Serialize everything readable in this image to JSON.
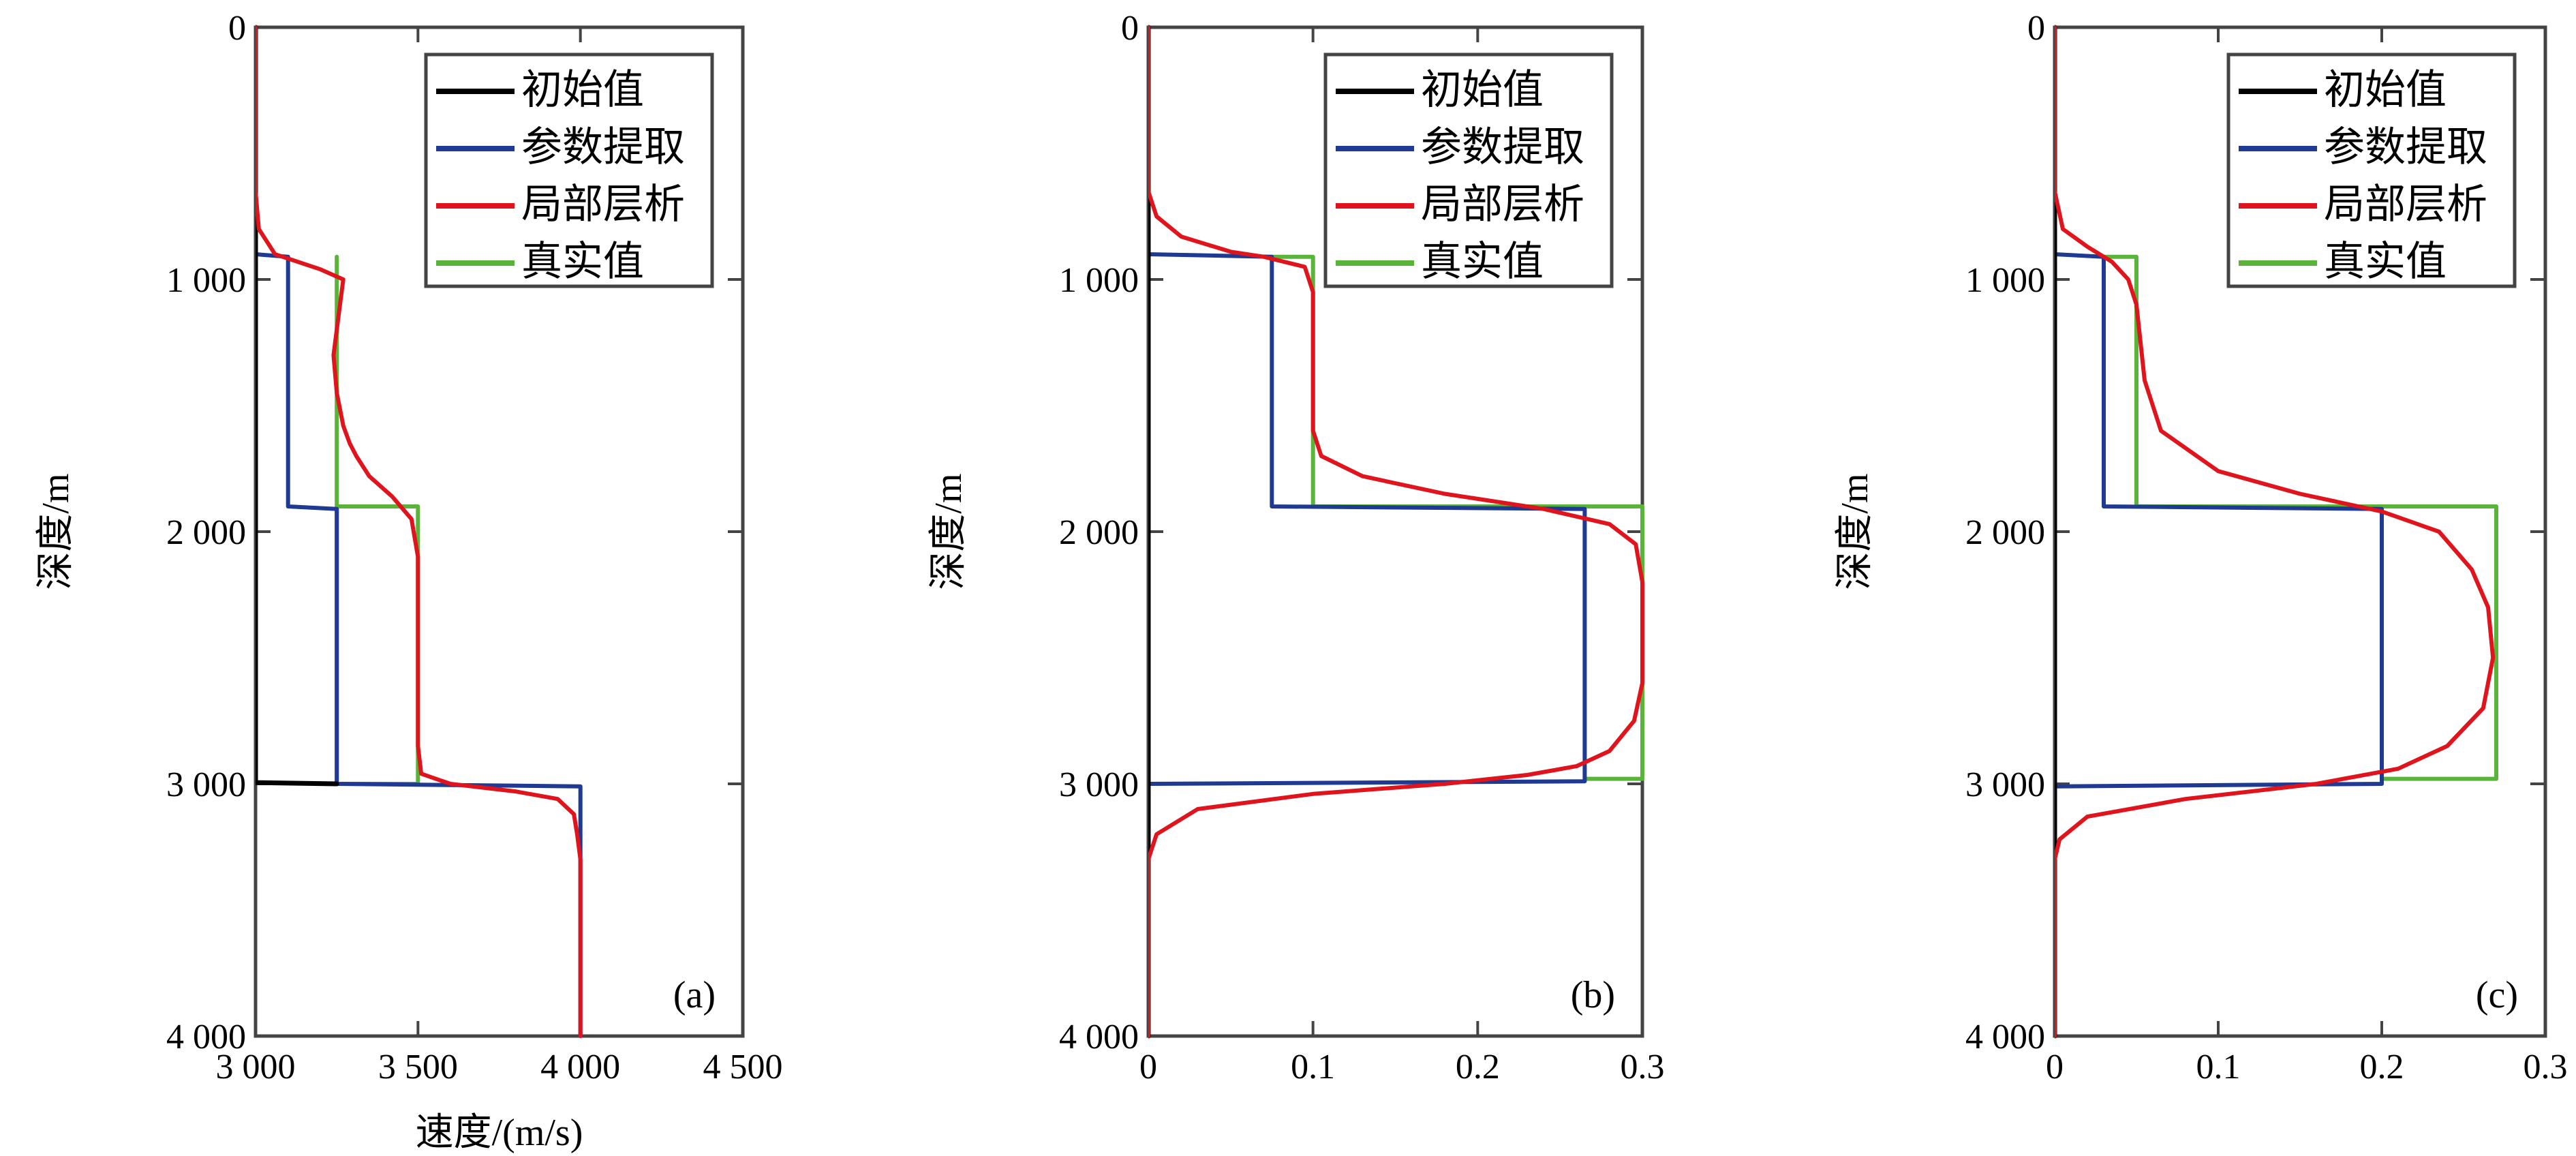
{
  "legend_labels": [
    "初始值",
    "参数提取",
    "局部层析",
    "真实值"
  ],
  "colors": {
    "initial": "#000000",
    "extracted": "#1f3a93",
    "tomography": "#e0141c",
    "true": "#5ab43a",
    "axes": "#444444"
  },
  "chart_data": [
    {
      "type": "line",
      "panel_label": "(a)",
      "xlabel": "速度/(m/s)",
      "ylabel": "深度/m",
      "xlim": [
        3000,
        4500
      ],
      "ylim": [
        0,
        4000
      ],
      "y_inverted": true,
      "xticks": [
        3000,
        3500,
        4000,
        4500
      ],
      "xtick_labels": [
        "3 000",
        "3 500",
        "4 000",
        "4 500"
      ],
      "yticks": [
        0,
        1000,
        2000,
        3000,
        4000
      ],
      "ytick_labels": [
        "0",
        "1 000",
        "2 000",
        "3 000",
        "4 000"
      ],
      "legend_position": "top-right",
      "grid": false,
      "series": [
        {
          "name": "初始值",
          "x": [
            3000,
            3000,
            3250,
            3250
          ],
          "y": [
            0,
            2995,
            3000,
            3000
          ]
        },
        {
          "name": "参数提取",
          "x": [
            3000,
            3000,
            3100,
            3100,
            3250,
            3250,
            4000,
            4000
          ],
          "y": [
            0,
            900,
            910,
            1900,
            1910,
            3000,
            3010,
            4000
          ]
        },
        {
          "name": "局部层析",
          "x": [
            3000,
            3000,
            3010,
            3060,
            3200,
            3270,
            3260,
            3240,
            3250,
            3270,
            3290,
            3310,
            3350,
            3420,
            3480,
            3500,
            3500,
            3510,
            3600,
            3800,
            3930,
            3980,
            3990,
            4000,
            4000,
            4000
          ],
          "y": [
            0,
            650,
            800,
            900,
            960,
            1000,
            1100,
            1300,
            1450,
            1580,
            1650,
            1700,
            1780,
            1860,
            1950,
            2100,
            2850,
            2960,
            3000,
            3030,
            3060,
            3120,
            3200,
            3300,
            3600,
            4000
          ]
        },
        {
          "name": "真实值",
          "x": [
            3250,
            3250,
            3500,
            3500,
            3250,
            3250
          ],
          "y": [
            910,
            1900,
            1900,
            3000,
            3000,
            910
          ]
        }
      ]
    },
    {
      "type": "line",
      "panel_label": "(b)",
      "xlabel": "",
      "ylabel": "深度/m",
      "xlim": [
        0,
        0.3
      ],
      "ylim": [
        0,
        4000
      ],
      "y_inverted": true,
      "xticks": [
        0,
        0.1,
        0.2,
        0.3
      ],
      "xtick_labels": [
        "0",
        "0.1",
        "0.2",
        "0.3"
      ],
      "yticks": [
        0,
        1000,
        2000,
        3000,
        4000
      ],
      "ytick_labels": [
        "0",
        "1 000",
        "2 000",
        "3 000",
        "4 000"
      ],
      "legend_position": "top-right",
      "grid": false,
      "series": [
        {
          "name": "初始值",
          "x": [
            0,
            0
          ],
          "y": [
            0,
            4000
          ]
        },
        {
          "name": "参数提取",
          "x": [
            0,
            0,
            0.075,
            0.075,
            0.265,
            0.265,
            0,
            0
          ],
          "y": [
            0,
            900,
            910,
            1900,
            1910,
            2990,
            3000,
            4000
          ]
        },
        {
          "name": "局部层析",
          "x": [
            0,
            0,
            0.005,
            0.02,
            0.05,
            0.07,
            0.095,
            0.1,
            0.1,
            0.105,
            0.13,
            0.18,
            0.24,
            0.28,
            0.296,
            0.3,
            0.3,
            0.295,
            0.28,
            0.26,
            0.23,
            0.18,
            0.1,
            0.03,
            0.005,
            0,
            0
          ],
          "y": [
            0,
            650,
            750,
            830,
            890,
            910,
            950,
            1050,
            1600,
            1700,
            1780,
            1850,
            1910,
            1970,
            2050,
            2200,
            2600,
            2750,
            2870,
            2930,
            2965,
            3000,
            3040,
            3100,
            3200,
            3300,
            4000
          ]
        },
        {
          "name": "真实值",
          "x": [
            0.075,
            0.1,
            0.1,
            0.3,
            0.3,
            0.265
          ],
          "y": [
            910,
            910,
            1900,
            1900,
            2980,
            2980
          ]
        }
      ]
    },
    {
      "type": "line",
      "panel_label": "(c)",
      "xlabel": "",
      "ylabel": "深度/m",
      "xlim": [
        0,
        0.3
      ],
      "ylim": [
        0,
        4000
      ],
      "y_inverted": true,
      "xticks": [
        0,
        0.1,
        0.2,
        0.3
      ],
      "xtick_labels": [
        "0",
        "0.1",
        "0.2",
        "0.3"
      ],
      "yticks": [
        0,
        1000,
        2000,
        3000,
        4000
      ],
      "ytick_labels": [
        "0",
        "1 000",
        "2 000",
        "3 000",
        "4 000"
      ],
      "legend_position": "top-right",
      "grid": false,
      "series": [
        {
          "name": "初始值",
          "x": [
            0,
            0
          ],
          "y": [
            0,
            4000
          ]
        },
        {
          "name": "参数提取",
          "x": [
            0,
            0,
            0.03,
            0.03,
            0.2,
            0.2,
            0,
            0
          ],
          "y": [
            0,
            900,
            910,
            1900,
            1910,
            3000,
            3010,
            4000
          ]
        },
        {
          "name": "局部层析",
          "x": [
            0,
            0,
            0.005,
            0.02,
            0.035,
            0.045,
            0.05,
            0.055,
            0.065,
            0.1,
            0.15,
            0.2,
            0.235,
            0.255,
            0.265,
            0.268,
            0.262,
            0.24,
            0.21,
            0.16,
            0.08,
            0.02,
            0.003,
            0,
            0
          ],
          "y": [
            0,
            650,
            800,
            870,
            930,
            1000,
            1100,
            1400,
            1600,
            1760,
            1850,
            1920,
            2000,
            2150,
            2300,
            2500,
            2700,
            2850,
            2940,
            3000,
            3060,
            3130,
            3220,
            3300,
            4000
          ]
        },
        {
          "name": "真实值",
          "x": [
            0.03,
            0.05,
            0.05,
            0.27,
            0.27,
            0.2
          ],
          "y": [
            910,
            910,
            1900,
            1900,
            2980,
            2980
          ]
        }
      ]
    }
  ]
}
